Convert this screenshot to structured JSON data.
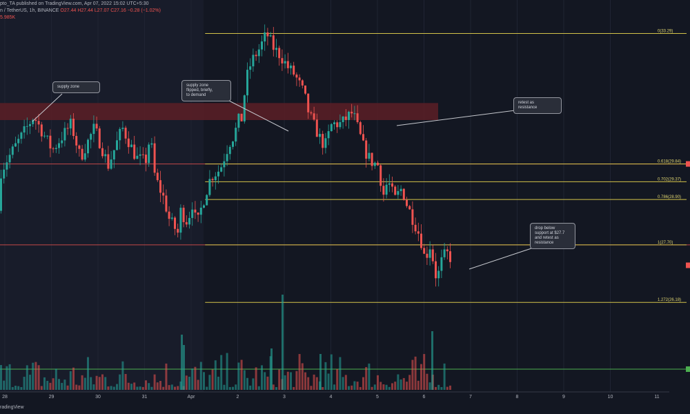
{
  "header": {
    "line1": "pto_TA published on TradingView.com, Apr 07, 2022 15:02 UTC+5:30",
    "pair": "n / TetherUS, 1h, BINANCE",
    "ohlc": "O27.44 H27.44 L27.07 C27.16 −0.28 (−1.02%)",
    "volume": "5.985K"
  },
  "footer": {
    "brand": "radingView"
  },
  "colors": {
    "background": "#131722",
    "up": "#26a69a",
    "down": "#ef5350",
    "fib": "#d4c44a",
    "supply_zone": "#5c1f26",
    "horizontal_line": "#ef5350",
    "green_line": "#4caf50"
  },
  "chart_data": {
    "type": "candlestick",
    "symbol": "TetherUS, 1h, BINANCE",
    "x_tick_labels": [
      "28",
      "29",
      "30",
      "31",
      "Apr",
      "2",
      "3",
      "4",
      "5",
      "6",
      "7",
      "8",
      "9",
      "10",
      "11"
    ],
    "ylim": [
      25.6,
      33.7
    ],
    "fib_levels": [
      {
        "label": "0(33.29)",
        "ratio": 0,
        "value": 33.29
      },
      {
        "label": "0.618(29.84)",
        "ratio": 0.618,
        "value": 29.84
      },
      {
        "label": "0.702(29.37)",
        "ratio": 0.702,
        "value": 29.37
      },
      {
        "label": "0.786(28.90)",
        "ratio": 0.786,
        "value": 28.9
      },
      {
        "label": "1(27.70)",
        "ratio": 1,
        "value": 27.7
      },
      {
        "label": "1.272(26.18)",
        "ratio": 1.272,
        "value": 26.18
      }
    ],
    "supply_zone": {
      "low": 31.0,
      "high": 31.45
    },
    "horizontal_lines": [
      29.84,
      27.7
    ],
    "annotations": [
      {
        "text": "supply zone"
      },
      {
        "text": "supply zone\nflipped, briefly,\nto demand"
      },
      {
        "text": "retest as\nresistance"
      },
      {
        "text": "drop below\nsupport at $27.7\nand retest as\nresistance"
      }
    ],
    "price_path": [
      [
        27.5,
        28.6
      ],
      [
        28.0,
        29.9
      ],
      [
        28.6,
        31.1
      ],
      [
        29.0,
        30.2
      ],
      [
        29.4,
        30.9
      ],
      [
        29.6,
        30.0
      ],
      [
        29.9,
        30.8
      ],
      [
        30.2,
        29.8
      ],
      [
        30.5,
        30.8
      ],
      [
        30.8,
        30.0
      ],
      [
        31.0,
        29.9
      ],
      [
        31.1,
        30.6
      ],
      [
        31.2,
        29.5
      ],
      [
        31.4,
        28.9
      ],
      [
        31.5,
        28.4
      ],
      [
        31.7,
        28.0
      ],
      [
        31.75,
        28.6
      ],
      [
        31.9,
        28.3
      ],
      [
        32.0,
        28.8
      ],
      [
        32.1,
        28.2
      ],
      [
        32.2,
        28.7
      ],
      [
        32.4,
        29.5
      ],
      [
        32.6,
        29.7
      ],
      [
        32.8,
        30.4
      ],
      [
        32.9,
        30.6
      ],
      [
        33.0,
        31.0
      ],
      [
        33.05,
        30.9
      ],
      [
        33.1,
        31.5
      ],
      [
        33.2,
        32.3
      ],
      [
        33.3,
        32.6
      ],
      [
        33.45,
        32.9
      ],
      [
        33.6,
        33.29
      ],
      [
        33.75,
        32.9
      ],
      [
        33.9,
        32.7
      ],
      [
        34.05,
        32.4
      ],
      [
        34.2,
        32.2
      ],
      [
        34.4,
        31.7
      ],
      [
        34.5,
        31.2
      ],
      [
        34.6,
        30.9
      ],
      [
        34.75,
        30.5
      ],
      [
        34.85,
        30.3
      ],
      [
        35.0,
        30.9
      ],
      [
        35.2,
        30.9
      ],
      [
        35.35,
        31.1
      ],
      [
        35.45,
        31.2
      ],
      [
        35.55,
        30.8
      ],
      [
        35.7,
        30.2
      ],
      [
        35.85,
        29.9
      ],
      [
        36.0,
        29.8
      ],
      [
        36.1,
        29.0
      ],
      [
        36.2,
        29.4
      ],
      [
        36.35,
        28.9
      ],
      [
        36.5,
        29.2
      ],
      [
        36.6,
        28.8
      ],
      [
        36.7,
        28.5
      ],
      [
        36.8,
        28.2
      ],
      [
        36.9,
        27.9
      ],
      [
        36.95,
        27.6
      ],
      [
        37.0,
        27.3
      ],
      [
        37.1,
        27.7
      ],
      [
        37.15,
        27.4
      ],
      [
        37.2,
        27.2
      ],
      [
        37.25,
        26.7
      ],
      [
        37.3,
        27.0
      ],
      [
        37.35,
        27.25
      ],
      [
        37.45,
        27.5
      ],
      [
        37.55,
        27.35
      ],
      [
        37.6,
        27.6
      ]
    ]
  }
}
